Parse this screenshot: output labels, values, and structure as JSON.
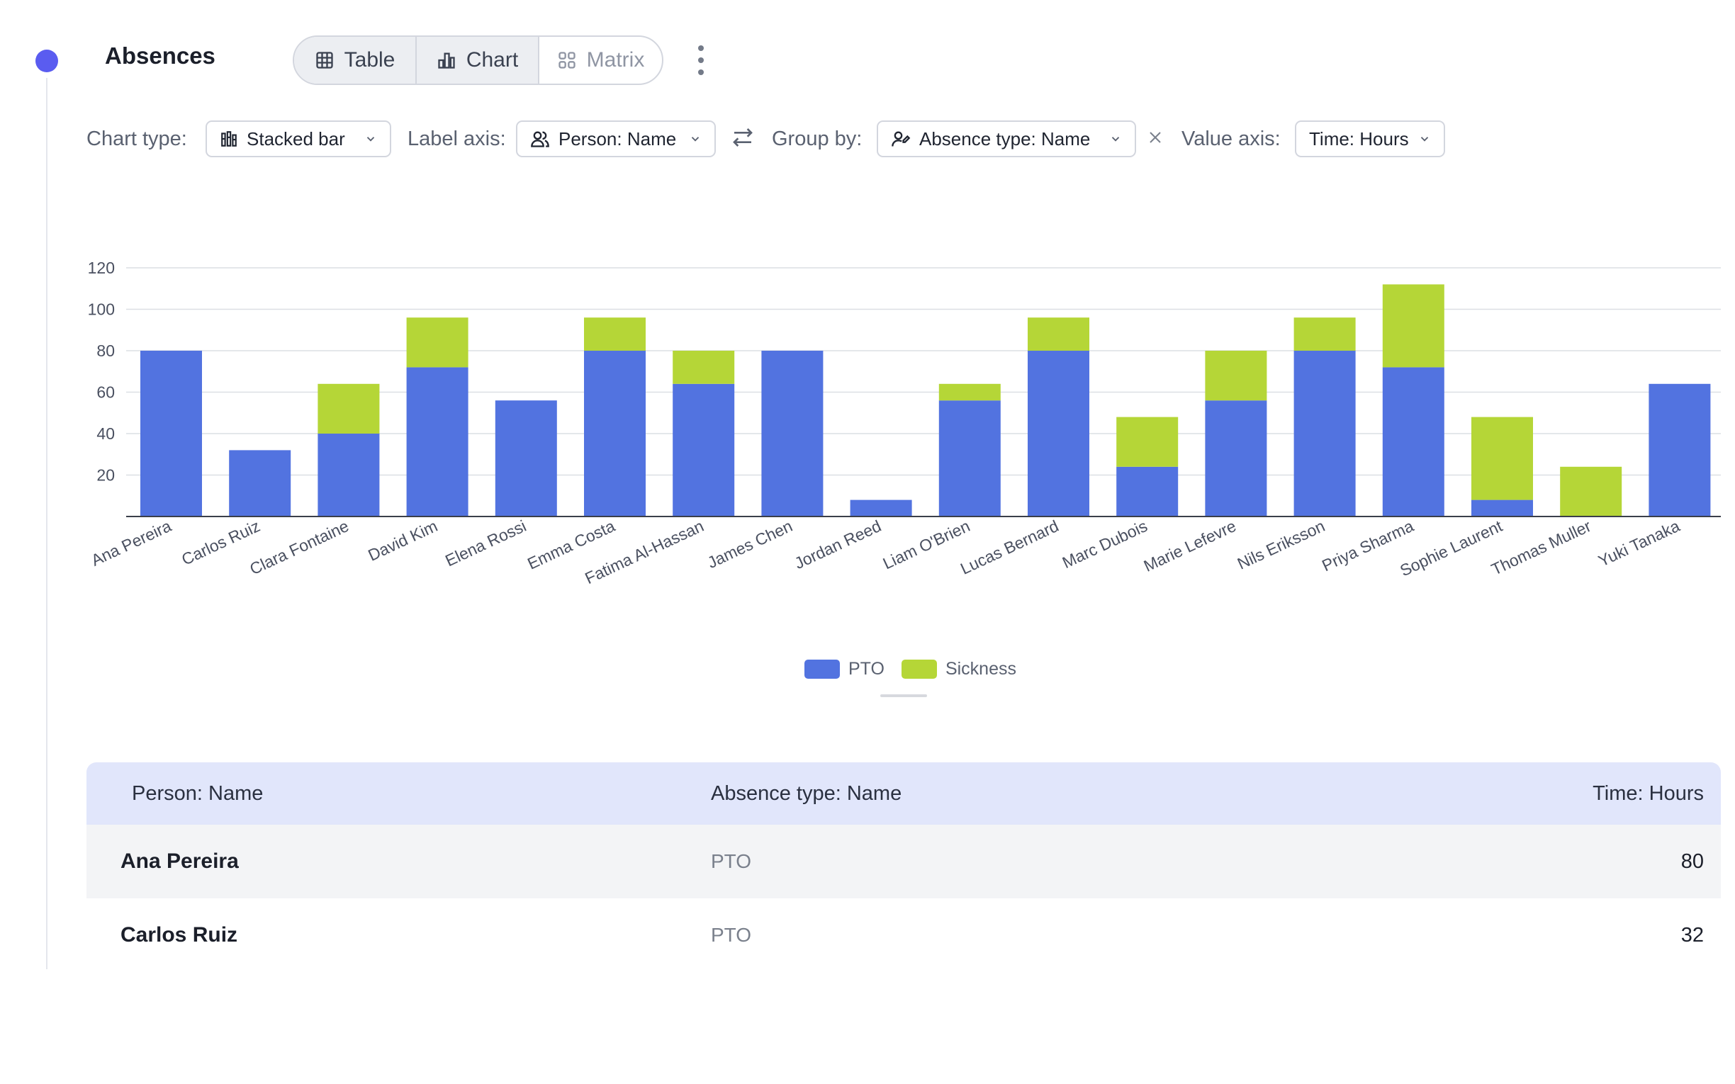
{
  "header": {
    "title": "Absences"
  },
  "view_tabs": [
    {
      "label": "Table",
      "icon": "table-icon",
      "active": true
    },
    {
      "label": "Chart",
      "icon": "bar-chart-icon",
      "active": true
    },
    {
      "label": "Matrix",
      "icon": "grid-icon",
      "active": false
    }
  ],
  "controls": {
    "chart_type_label": "Chart type:",
    "chart_type_value": "Stacked bar",
    "label_axis_label": "Label axis:",
    "label_axis_value": "Person: Name",
    "group_by_label": "Group by:",
    "group_by_value": "Absence type: Name",
    "value_axis_label": "Value axis:",
    "value_axis_value": "Time: Hours"
  },
  "colors": {
    "pto": "#5273e0",
    "sickness": "#b5d637",
    "accent": "#5a5cf0"
  },
  "chart_data": {
    "type": "bar",
    "stacked": true,
    "categories": [
      "Ana Pereira",
      "Carlos Ruiz",
      "Clara Fontaine",
      "David Kim",
      "Elena Rossi",
      "Emma Costa",
      "Fatima Al-Hassan",
      "James Chen",
      "Jordan Reed",
      "Liam O'Brien",
      "Lucas Bernard",
      "Marc Dubois",
      "Marie Lefevre",
      "Nils Eriksson",
      "Priya Sharma",
      "Sophie Laurent",
      "Thomas Muller",
      "Yuki Tanaka"
    ],
    "series": [
      {
        "name": "PTO",
        "values": [
          80,
          32,
          40,
          72,
          56,
          80,
          64,
          80,
          8,
          56,
          80,
          24,
          56,
          80,
          72,
          8,
          0,
          64
        ]
      },
      {
        "name": "Sickness",
        "values": [
          0,
          0,
          24,
          24,
          0,
          16,
          16,
          0,
          0,
          8,
          16,
          24,
          24,
          16,
          40,
          40,
          24,
          0
        ]
      }
    ],
    "yticks": [
      20,
      40,
      60,
      80,
      100,
      120
    ],
    "ylim": [
      0,
      120
    ],
    "grid": true,
    "legend_position": "bottom"
  },
  "table": {
    "headers": [
      "Person: Name",
      "Absence type: Name",
      "Time: Hours"
    ],
    "rows": [
      [
        "Ana Pereira",
        "PTO",
        "80"
      ],
      [
        "Carlos Ruiz",
        "PTO",
        "32"
      ]
    ]
  }
}
